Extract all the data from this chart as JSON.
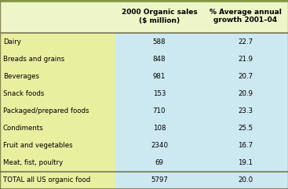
{
  "col1_header_l1": "2000 Organic sales",
  "col1_header_l2": "($ million)",
  "col2_header_l1": "% Average annual",
  "col2_header_l2": "growth 2001–04",
  "categories": [
    "Dairy",
    "Breads and grains",
    "Beverages",
    "Snack foods",
    "Packaged/prepared foods",
    "Condiments",
    "Fruit and vegetables",
    "Meat, fist, poultry"
  ],
  "total_label": "TOTAL all US organic food",
  "sales": [
    "588",
    "848",
    "981",
    "153",
    "710",
    "108",
    "2340",
    "69"
  ],
  "growth": [
    "22.7",
    "21.9",
    "20.7",
    "20.9",
    "23.3",
    "25.5",
    "16.7",
    "19.1"
  ],
  "total_sales": "5797",
  "total_growth": "20.0",
  "header_bg": "#eef5c8",
  "left_col_bg": "#e8f0a0",
  "right_col_bg": "#cce8f0",
  "total_left_bg": "#e8f0a0",
  "total_right_bg": "#cce8f0",
  "border_color": "#888855",
  "separator_color": "#777755",
  "text_color": "#000000",
  "fig_bg": "#eef5c8",
  "header_fontsize": 6.5,
  "data_fontsize": 6.2
}
